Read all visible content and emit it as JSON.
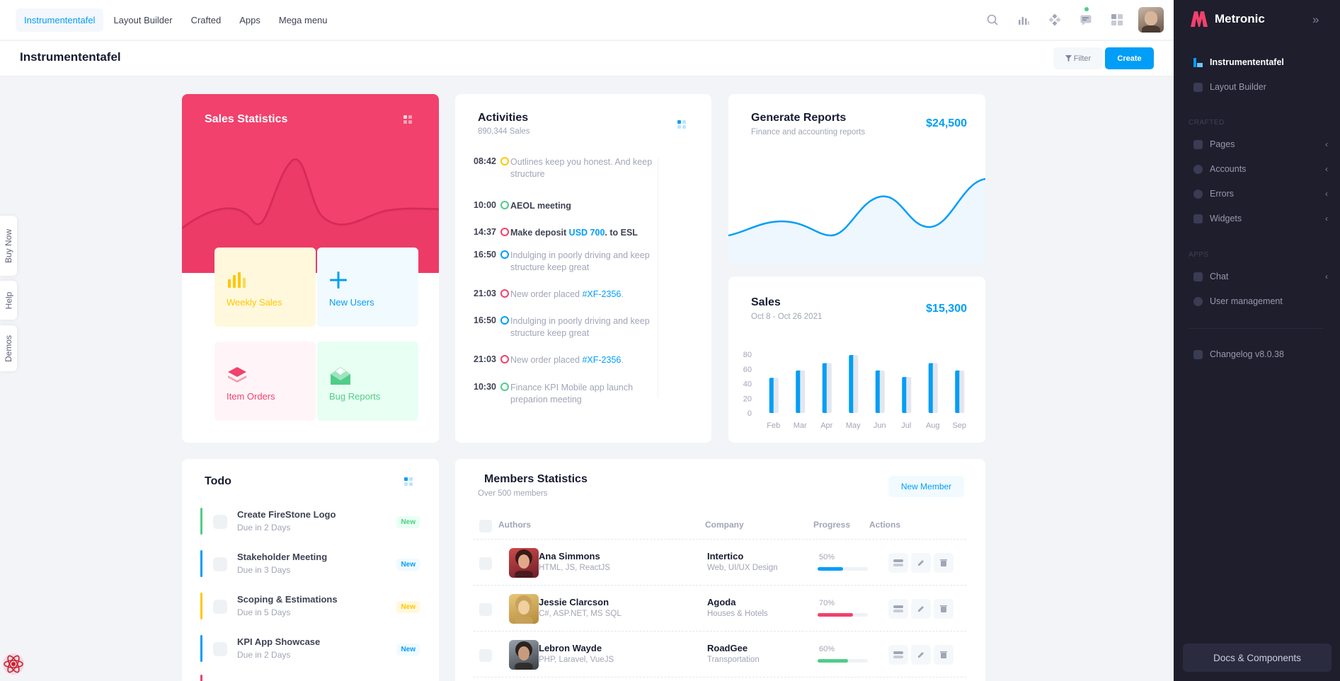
{
  "topnav": {
    "items": [
      "Instrumententafel",
      "Layout Builder",
      "Crafted",
      "Apps",
      "Mega menu"
    ],
    "icons": [
      "search-icon",
      "chart-icon",
      "apps-icon",
      "chat-icon",
      "grid-icon"
    ]
  },
  "toolbar": {
    "title": "Instrumententafel",
    "filter_label": "Filter",
    "create_label": "Create"
  },
  "sidebar": {
    "brand": "Metronic",
    "items": [
      {
        "label": "Instrumententafel"
      },
      {
        "label": "Layout Builder"
      },
      {
        "label": "Pages"
      },
      {
        "label": "Accounts"
      },
      {
        "label": "Errors"
      },
      {
        "label": "Widgets"
      },
      {
        "label": "Chat"
      },
      {
        "label": "User management"
      },
      {
        "label": "Changelog v8.0.38"
      }
    ],
    "sections": [
      "CRAFTED",
      "APPS"
    ],
    "docs_label": "Docs & Components"
  },
  "side_tabs": [
    "Buy Now",
    "Help",
    "Demos"
  ],
  "sales_statistics": {
    "title": "Sales Statistics",
    "tiles": [
      {
        "label": "Weekly Sales",
        "color": "#ffc700"
      },
      {
        "label": "New Users",
        "color": "#009ef7"
      },
      {
        "label": "Item Orders",
        "color": "#f1416c"
      },
      {
        "label": "Bug Reports",
        "color": "#50cd89"
      }
    ]
  },
  "activities": {
    "title": "Activities",
    "subtitle": "890,344 Sales",
    "rows": [
      {
        "time": "08:42",
        "color": "#ffc700",
        "text": "Outlines keep you honest. And keep structure",
        "strong": false
      },
      {
        "time": "10:00",
        "color": "#50cd89",
        "text": "AEOL meeting",
        "strong": true
      },
      {
        "time": "14:37",
        "color": "#f1416c",
        "text": "Make deposit ",
        "link": "USD 700",
        "after": ". to ESL",
        "strong": true
      },
      {
        "time": "16:50",
        "color": "#009ef7",
        "text": "Indulging in poorly driving and keep structure keep great",
        "strong": false
      },
      {
        "time": "21:03",
        "color": "#f1416c",
        "text": "New order placed ",
        "link": "#XF-2356",
        "after": ".",
        "strong": false
      },
      {
        "time": "16:50",
        "color": "#009ef7",
        "text": "Indulging in poorly driving and keep structure keep great",
        "strong": false
      },
      {
        "time": "21:03",
        "color": "#f1416c",
        "text": "New order placed ",
        "link": "#XF-2356",
        "after": ".",
        "strong": false
      },
      {
        "time": "10:30",
        "color": "#50cd89",
        "text": "Finance KPI Mobile app launch preparion meeting",
        "strong": false
      }
    ]
  },
  "generate_reports": {
    "title": "Generate Reports",
    "subtitle": "Finance and accounting reports",
    "amount": "$24,500"
  },
  "sales": {
    "title": "Sales",
    "subtitle": "Oct 8 - Oct 26 2021",
    "amount": "$15,300"
  },
  "chart_data": {
    "type": "bar",
    "categories": [
      "Feb",
      "Mar",
      "Apr",
      "May",
      "Jun",
      "Jul",
      "Aug",
      "Sep"
    ],
    "series": [
      {
        "values": [
          48,
          58,
          68,
          79,
          58,
          49,
          68,
          58
        ],
        "color": "#009ef7"
      },
      {
        "values": [
          48,
          58,
          68,
          79,
          58,
          49,
          68,
          58
        ],
        "color": "#e4e6ef"
      }
    ],
    "yticks": [
      0,
      20,
      40,
      60,
      80
    ],
    "ylim": [
      0,
      80
    ],
    "grid": false
  },
  "todo": {
    "title": "Todo",
    "items": [
      {
        "title": "Create FireStone Logo",
        "due": "Due in 2 Days",
        "badge": "New",
        "color": "#50cd89",
        "badge_bg": "#e8fff3"
      },
      {
        "title": "Stakeholder Meeting",
        "due": "Due in 3 Days",
        "badge": "New",
        "color": "#009ef7",
        "badge_bg": "#f1faff"
      },
      {
        "title": "Scoping & Estimations",
        "due": "Due in 5 Days",
        "badge": "New",
        "color": "#ffc700",
        "badge_bg": "#fff8dd"
      },
      {
        "title": "KPI App Showcase",
        "due": "Due in 2 Days",
        "badge": "New",
        "color": "#009ef7",
        "badge_bg": "#f1faff"
      }
    ]
  },
  "members": {
    "title": "Members Statistics",
    "subtitle": "Over 500 members",
    "new_member_label": "New Member",
    "headers": [
      "Authors",
      "Company",
      "Progress",
      "Actions"
    ],
    "rows": [
      {
        "name": "Ana Simmons",
        "skills": "HTML, JS, ReactJS",
        "company": "Intertico",
        "company_sub": "Web, UI/UX Design",
        "progress": "50%",
        "pct": 50,
        "color": "#009ef7"
      },
      {
        "name": "Jessie Clarcson",
        "skills": "C#, ASP.NET, MS SQL",
        "company": "Agoda",
        "company_sub": "Houses & Hotels",
        "progress": "70%",
        "pct": 70,
        "color": "#f1416c"
      },
      {
        "name": "Lebron Wayde",
        "skills": "PHP, Laravel, VueJS",
        "company": "RoadGee",
        "company_sub": "Transportation",
        "progress": "60%",
        "pct": 60,
        "color": "#50cd89"
      }
    ]
  }
}
